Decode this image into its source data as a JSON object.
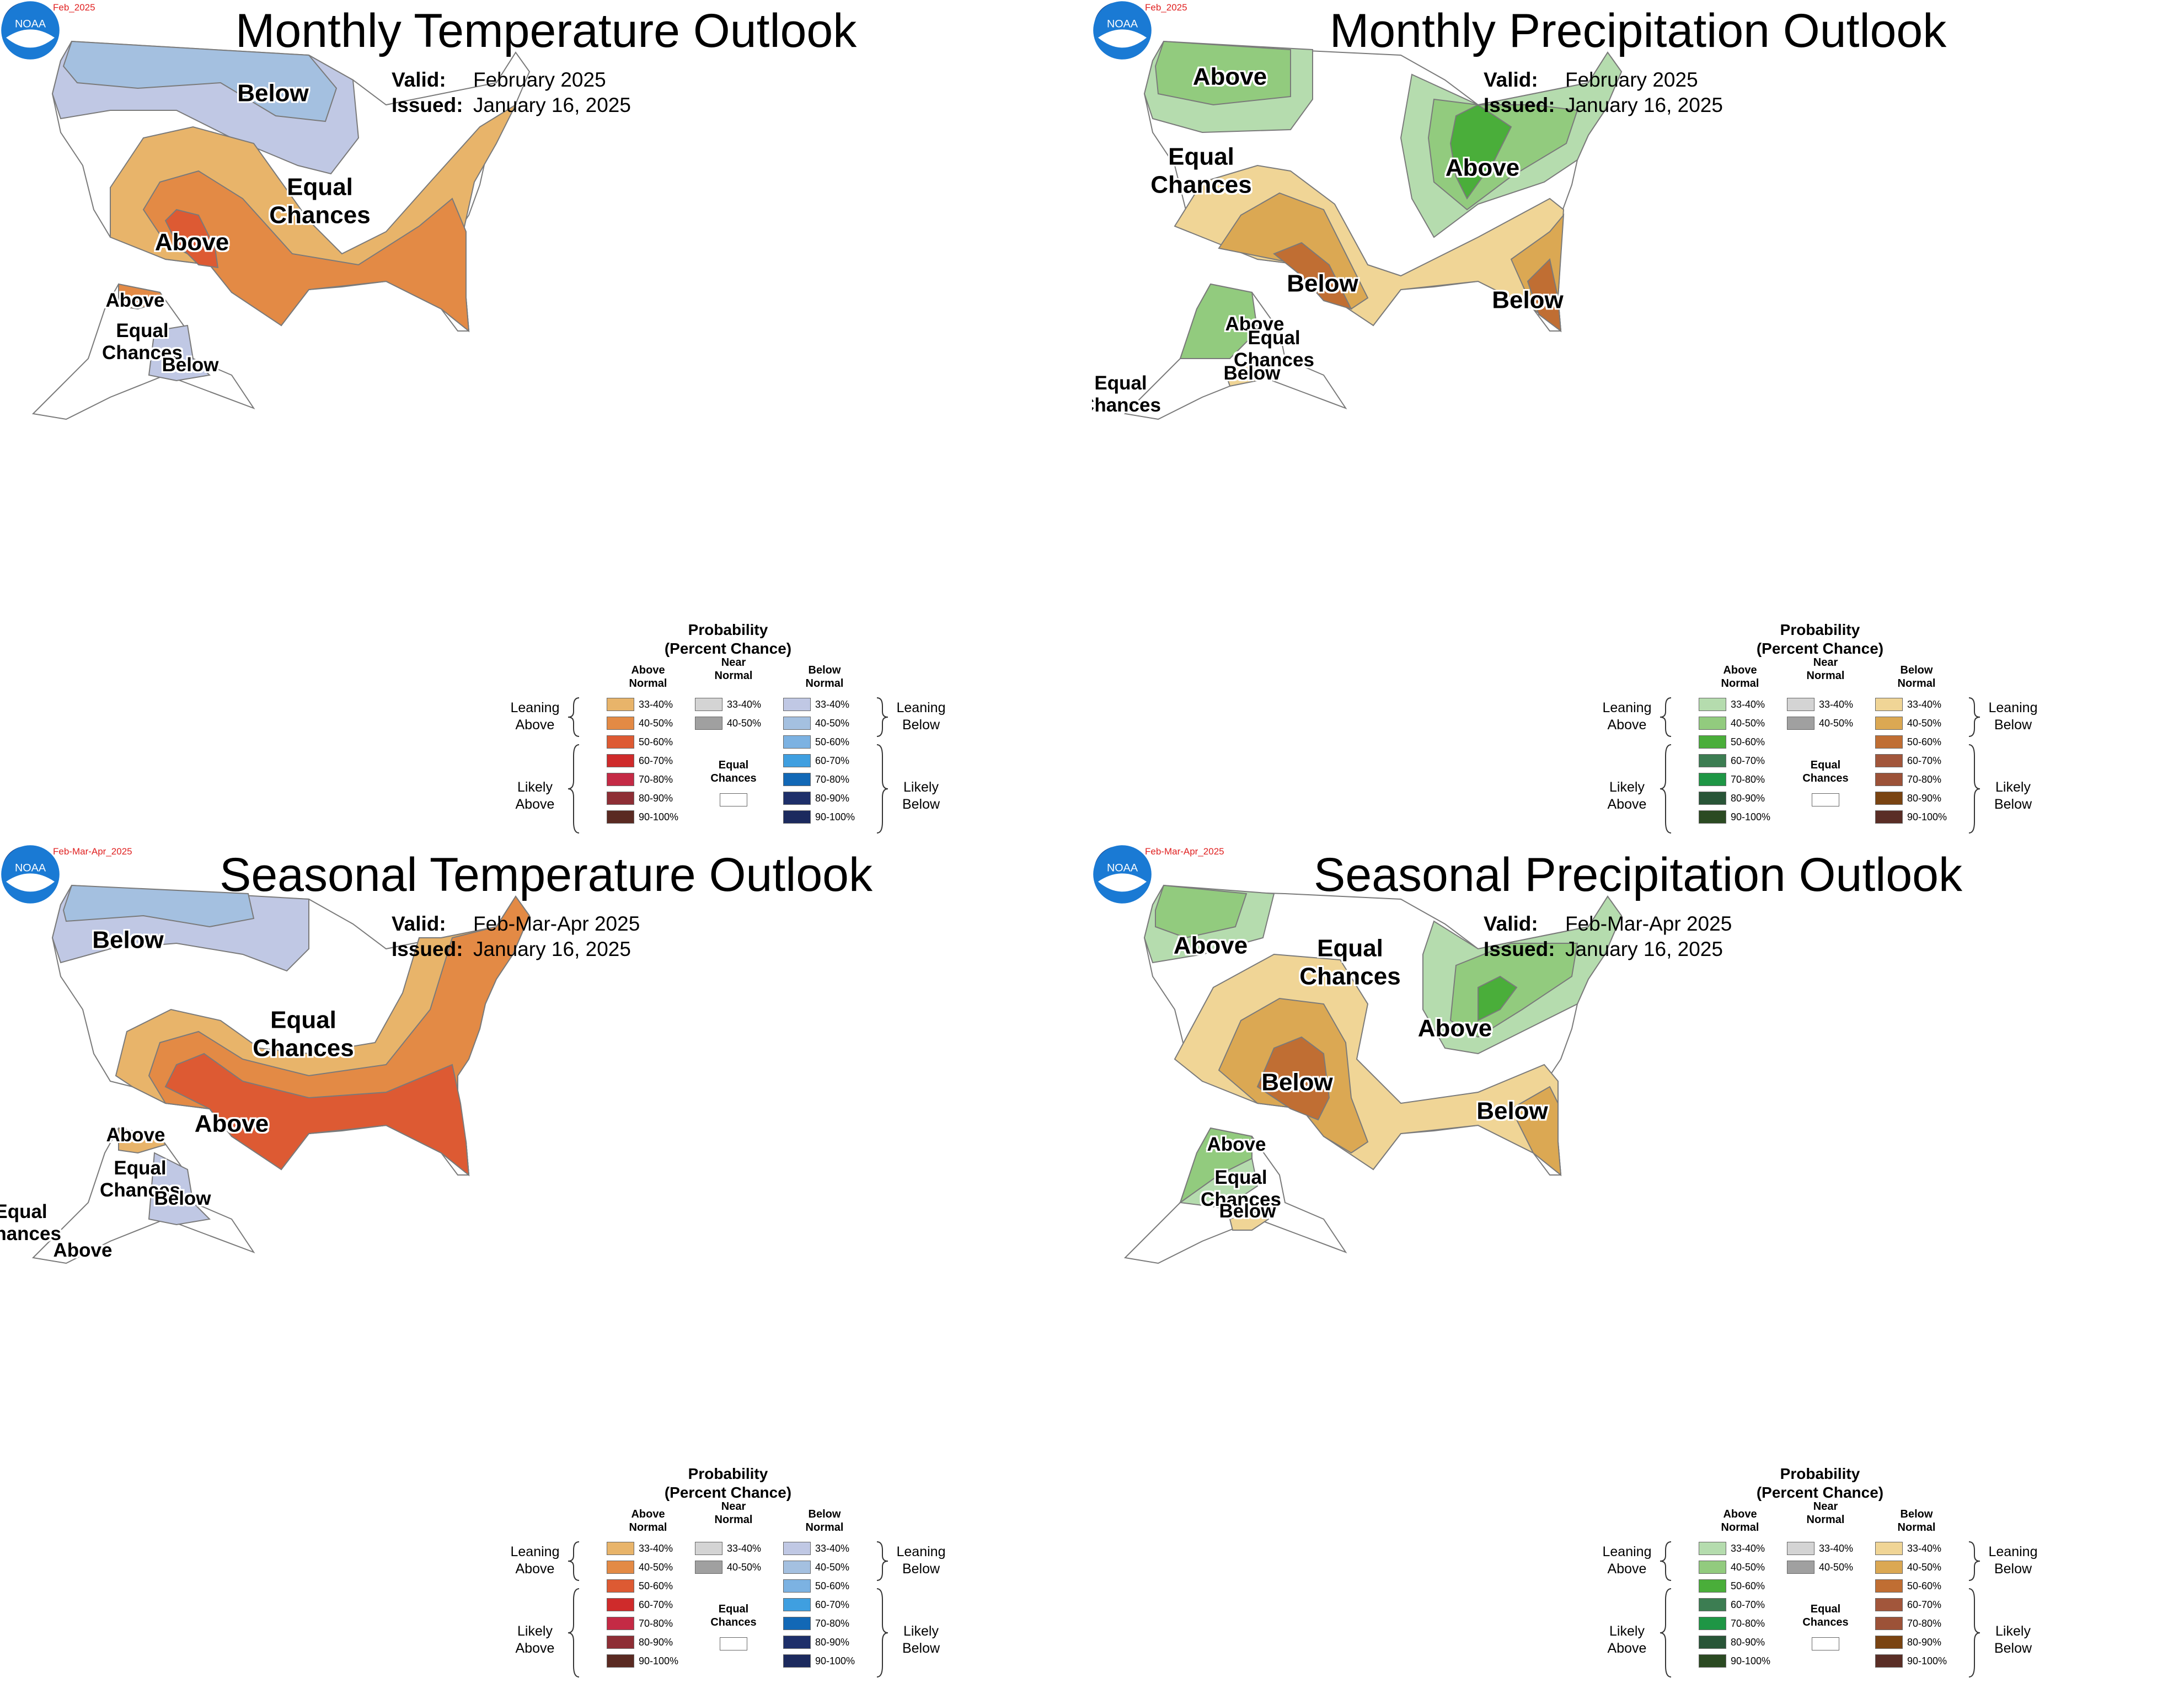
{
  "panels": [
    {
      "date_code": "Feb_2025",
      "title": "Monthly Temperature Outlook",
      "valid_label": "Valid:",
      "valid_value": "February 2025",
      "issued_label": "Issued:",
      "issued_value": "January 16, 2025",
      "noaa_text": "NOAA",
      "map_labels": [
        "Below",
        "Equal\nChances",
        "Above",
        "Above",
        "Equal\nChances",
        "Below"
      ]
    },
    {
      "date_code": "Feb_2025",
      "title": "Monthly Precipitation Outlook",
      "valid_label": "Valid:",
      "valid_value": "February 2025",
      "issued_label": "Issued:",
      "issued_value": "January 16, 2025",
      "noaa_text": "NOAA",
      "map_labels": [
        "Above",
        "Equal\nChances",
        "Above",
        "Below",
        "Below",
        "Above",
        "Equal\nChances",
        "Below",
        "Equal\nChances"
      ]
    },
    {
      "date_code": "Feb-Mar-Apr_2025",
      "title": "Seasonal Temperature Outlook",
      "valid_label": "Valid:",
      "valid_value": "Feb-Mar-Apr 2025",
      "issued_label": "Issued:",
      "issued_value": "January 16, 2025",
      "noaa_text": "NOAA",
      "map_labels": [
        "Below",
        "Equal\nChances",
        "Above",
        "Above",
        "Equal\nChances",
        "Below",
        "Equal\nChances",
        "Above"
      ]
    },
    {
      "date_code": "Feb-Mar-Apr_2025",
      "title": "Seasonal Precipitation Outlook",
      "valid_label": "Valid:",
      "valid_value": "Feb-Mar-Apr 2025",
      "issued_label": "Issued:",
      "issued_value": "January 16, 2025",
      "noaa_text": "NOAA",
      "map_labels": [
        "Above",
        "Equal\nChances",
        "Above",
        "Below",
        "Below",
        "Above",
        "Equal\nChances",
        "Below"
      ]
    }
  ],
  "legend_temp": {
    "title": "Probability\n(Percent Chance)",
    "above_header": "Above\nNormal",
    "near_header": "Near\nNormal",
    "below_header": "Below\nNormal",
    "leaning_above": "Leaning\nAbove",
    "likely_above": "Likely\nAbove",
    "leaning_below": "Leaning\nBelow",
    "likely_below": "Likely\nBelow",
    "equal_chances": "Equal\nChances",
    "ranges": [
      "33-40%",
      "40-50%",
      "50-60%",
      "60-70%",
      "70-80%",
      "80-90%",
      "90-100%"
    ],
    "near_ranges": [
      "33-40%",
      "40-50%"
    ],
    "above_colors": [
      "#e8b46a",
      "#e38a45",
      "#dd5a33",
      "#cf2b2b",
      "#c42a45",
      "#8e2e35",
      "#5a2a22"
    ],
    "below_colors": [
      "#c0c8e4",
      "#a4c0e0",
      "#7cb2e2",
      "#3f9fe0",
      "#1268b6",
      "#1e2f6a",
      "#1c2a5e"
    ],
    "near_colors": [
      "#d4d4d4",
      "#a0a0a0"
    ]
  },
  "legend_precip": {
    "title": "Probability\n(Percent Chance)",
    "above_header": "Above\nNormal",
    "near_header": "Near\nNormal",
    "below_header": "Below\nNormal",
    "leaning_above": "Leaning\nAbove",
    "likely_above": "Likely\nAbove",
    "leaning_below": "Leaning\nBelow",
    "likely_below": "Likely\nBelow",
    "equal_chances": "Equal\nChances",
    "ranges": [
      "33-40%",
      "40-50%",
      "50-60%",
      "60-70%",
      "70-80%",
      "80-90%",
      "90-100%"
    ],
    "near_ranges": [
      "33-40%",
      "40-50%"
    ],
    "above_colors": [
      "#b5dcae",
      "#92cb7e",
      "#4aae3a",
      "#3c7d52",
      "#1e9645",
      "#285537",
      "#2b4a22"
    ],
    "below_colors": [
      "#f0d596",
      "#dba853",
      "#c06e33",
      "#a2563b",
      "#9c5238",
      "#7a4412",
      "#5a2e26"
    ],
    "near_colors": [
      "#d4d4d4",
      "#a0a0a0"
    ]
  },
  "colors": {
    "equal_chances": "#ffffff",
    "state_lines": "#7a7a7a",
    "noaa_blue": "#1a7ad4",
    "date_code": "#e02020"
  }
}
